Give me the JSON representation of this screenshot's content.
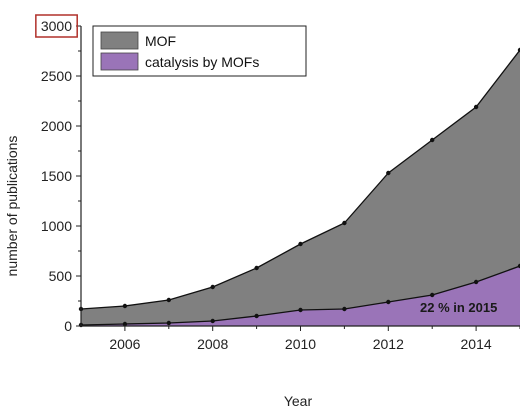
{
  "chart_data": {
    "type": "area",
    "xlabel": "Year",
    "ylabel": "number of publications",
    "xlim": [
      2005,
      2015
    ],
    "ylim": [
      0,
      3000
    ],
    "x_ticks": [
      2006,
      2008,
      2010,
      2012,
      2014
    ],
    "y_ticks": [
      0,
      500,
      1000,
      1500,
      2000,
      2500,
      3000
    ],
    "x_tick_labels": [
      "2006",
      "2008",
      "2010",
      "2012",
      "2014"
    ],
    "y_tick_labels": [
      "0",
      "500",
      "1000",
      "1500",
      "2000",
      "2500",
      "3000"
    ],
    "x": [
      2005,
      2006,
      2007,
      2008,
      2009,
      2010,
      2011,
      2012,
      2013,
      2014,
      2015
    ],
    "series": [
      {
        "name": "MOF",
        "color": "#808080",
        "values": [
          170,
          200,
          260,
          390,
          580,
          820,
          1030,
          1530,
          1860,
          2190,
          2760
        ]
      },
      {
        "name": "catalysis by MOFs",
        "color": "#9a74b8",
        "values": [
          10,
          20,
          30,
          50,
          100,
          160,
          170,
          240,
          310,
          440,
          600
        ]
      }
    ],
    "legend": "top-left",
    "grid": false,
    "annotation": "22 % in 2015",
    "highlight_tick": "3000",
    "highlight_color": "#b0302a"
  }
}
